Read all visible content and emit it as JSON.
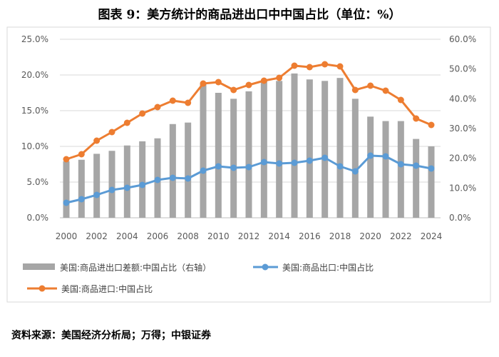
{
  "title": "图表 9：美方统计的商品进出口中中国占比（单位：%）",
  "source": "资料来源：美国经济分析局；万得；中银证券",
  "chart_data": {
    "type": "bar+line",
    "categories": [
      2000,
      2001,
      2002,
      2003,
      2004,
      2005,
      2006,
      2007,
      2008,
      2009,
      2010,
      2011,
      2012,
      2013,
      2014,
      2015,
      2016,
      2017,
      2018,
      2019,
      2020,
      2021,
      2022,
      2023,
      2024
    ],
    "x_tick_labels": [
      "2000",
      "2002",
      "2004",
      "2006",
      "2008",
      "2010",
      "2012",
      "2014",
      "2016",
      "2018",
      "2020",
      "2022",
      "2024"
    ],
    "left_axis": {
      "min": 0,
      "max": 25,
      "step": 5,
      "tick_labels": [
        "0.0%",
        "5.0%",
        "10.0%",
        "15.0%",
        "20.0%",
        "25.0%"
      ]
    },
    "right_axis": {
      "min": 0,
      "max": 60,
      "step": 10,
      "tick_labels": [
        "0.0%",
        "10.0%",
        "20.0%",
        "30.0%",
        "40.0%",
        "50.0%",
        "60.0%"
      ]
    },
    "series": [
      {
        "name": "美国:商品进出口差额:中国占比（右轴）",
        "type": "bar",
        "axis": "right",
        "color": "#a6a6a6",
        "values": [
          19.0,
          19.5,
          21.5,
          22.5,
          24.3,
          25.7,
          26.7,
          31.5,
          32.0,
          45.0,
          42.0,
          40.0,
          42.5,
          46.0,
          46.0,
          48.5,
          46.5,
          46.0,
          47.0,
          40.0,
          34.0,
          32.5,
          32.5,
          26.5,
          24.0
        ]
      },
      {
        "name": "美国:商品出口:中国占比",
        "type": "line",
        "axis": "left",
        "color": "#5b9bd5",
        "values": [
          2.1,
          2.6,
          3.2,
          3.9,
          4.2,
          4.6,
          5.3,
          5.6,
          5.5,
          6.6,
          7.2,
          7.0,
          7.1,
          7.8,
          7.6,
          7.7,
          8.0,
          8.4,
          7.2,
          6.5,
          8.7,
          8.6,
          7.5,
          7.3,
          6.9
        ]
      },
      {
        "name": "美国:商品进口:中国占比",
        "type": "line",
        "axis": "left",
        "color": "#ed7d31",
        "values": [
          8.2,
          8.9,
          10.8,
          12.0,
          13.3,
          14.6,
          15.5,
          16.4,
          16.1,
          18.8,
          19.0,
          17.9,
          18.6,
          19.2,
          19.6,
          21.3,
          21.1,
          21.5,
          21.2,
          17.9,
          18.5,
          17.8,
          16.5,
          13.9,
          13.0
        ]
      }
    ]
  }
}
